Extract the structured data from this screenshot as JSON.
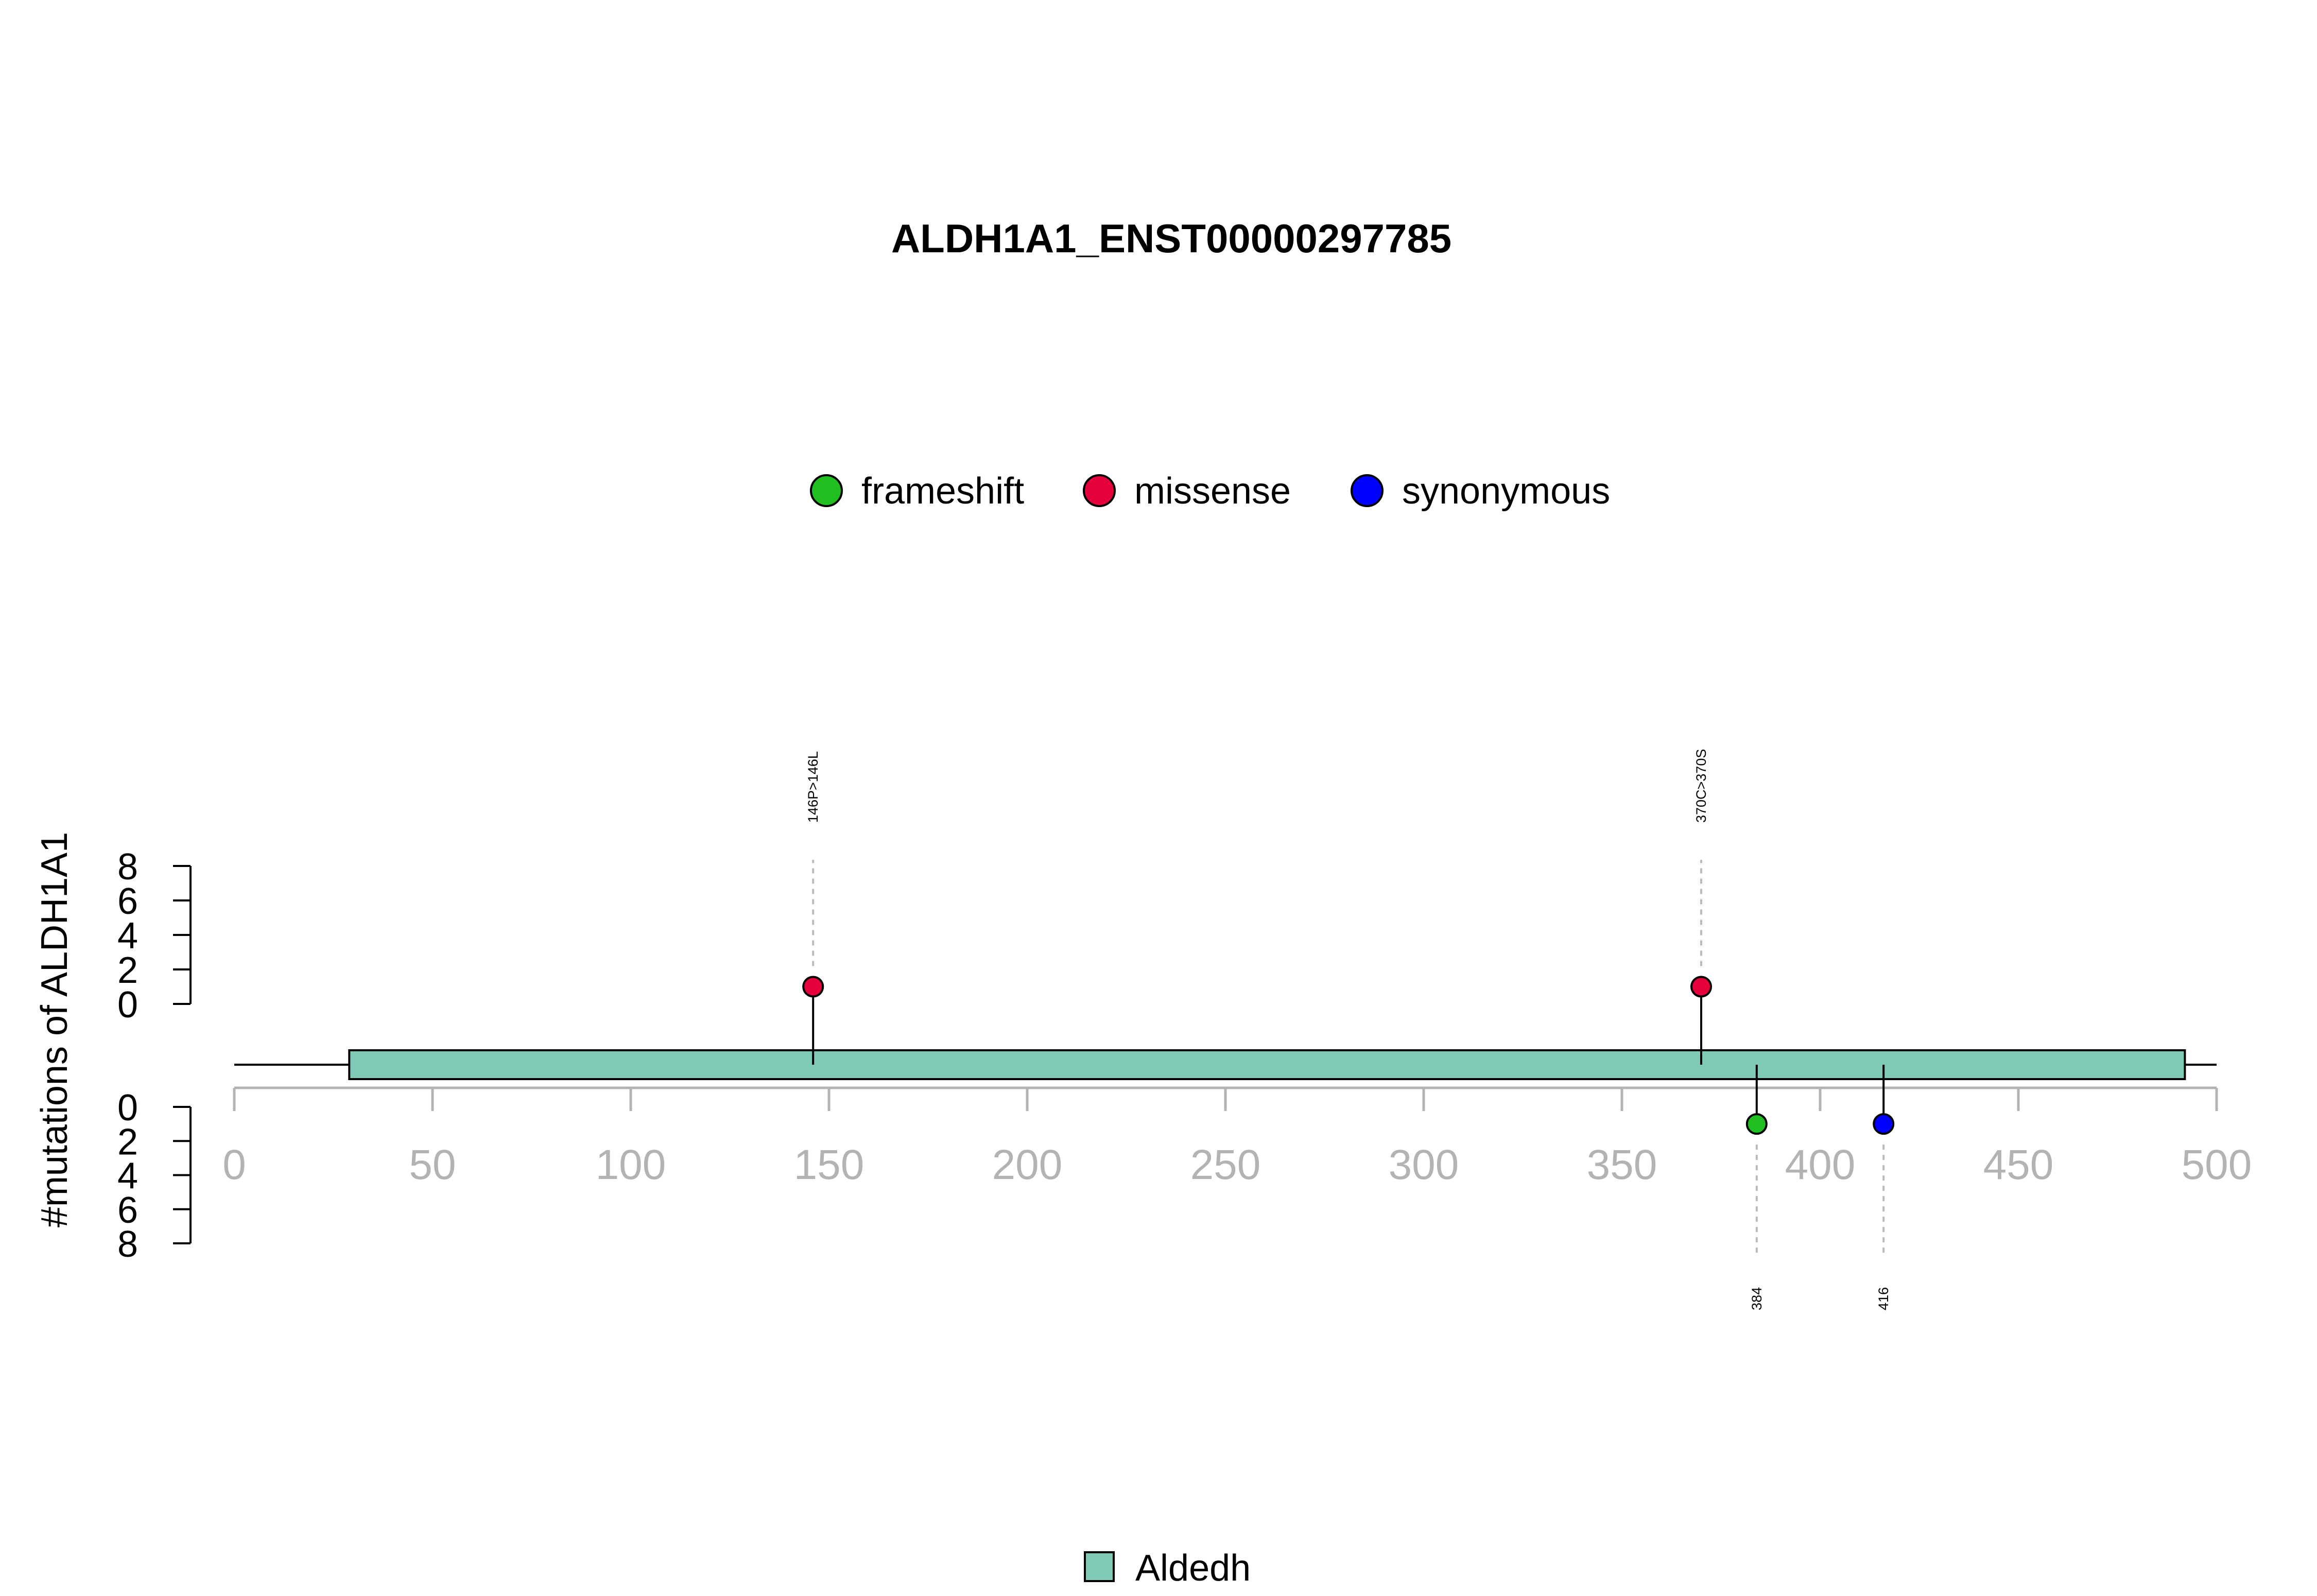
{
  "chart_data": {
    "type": "lollipop",
    "title": "ALDH1A1_ENST00000297785",
    "ylabel": "#mutations of ALDH1A1",
    "xlim": [
      0,
      500
    ],
    "x_ticks": [
      0,
      50,
      100,
      150,
      200,
      250,
      300,
      350,
      400,
      450,
      500
    ],
    "y_ticks": [
      0,
      2,
      4,
      6,
      8
    ],
    "ylim": [
      0,
      8
    ],
    "protein_length": 500,
    "legend": [
      {
        "name": "frameshift",
        "color": "#1fbf1f"
      },
      {
        "name": "missense",
        "color": "#e6003c"
      },
      {
        "name": "synonymous",
        "color": "#0000ff"
      }
    ],
    "domains": [
      {
        "name": "Aldedh",
        "start": 29,
        "end": 492,
        "color": "#7fcbb8"
      }
    ],
    "mutations": [
      {
        "position": 146,
        "label": "146P>146L",
        "type": "missense",
        "side": "up",
        "count": 1
      },
      {
        "position": 370,
        "label": "370C>370S",
        "type": "missense",
        "side": "up",
        "count": 1
      },
      {
        "position": 384,
        "label": "384",
        "type": "frameshift",
        "side": "down",
        "count": 1
      },
      {
        "position": 416,
        "label": "416",
        "type": "synonymous",
        "side": "down",
        "count": 1
      }
    ]
  }
}
